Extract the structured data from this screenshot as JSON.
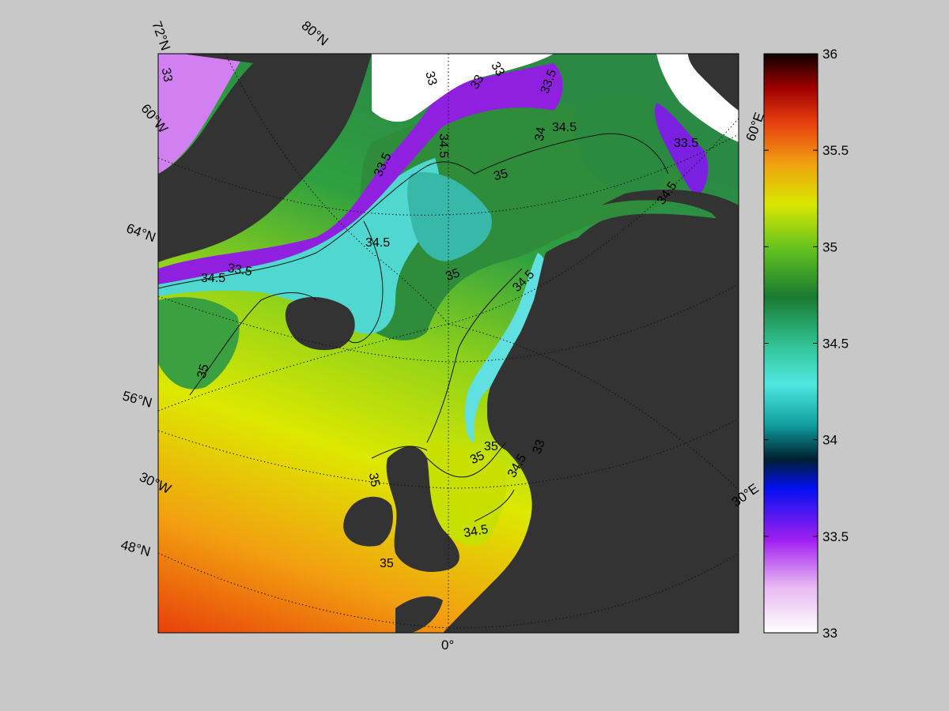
{
  "map": {
    "projection_labels": {
      "lat_72": "72°N",
      "lat_80": "80°N",
      "lat_64": "64°N",
      "lat_56": "56°N",
      "lat_48": "48°N",
      "lon_60w": "60°W",
      "lon_30w": "30°W",
      "lon_0": "0°",
      "lon_30e": "30°E",
      "lon_60e": "60°E"
    },
    "contour_labels": [
      "33",
      "33",
      "33",
      "33",
      "33.5",
      "33.5",
      "33.5",
      "34",
      "34.5",
      "34.5",
      "34.5",
      "34.5",
      "34.5",
      "34.5",
      "34.5",
      "35",
      "35",
      "35",
      "35",
      "35",
      "35",
      "33.5",
      "34.5",
      "35",
      "33"
    ],
    "colors": {
      "land": "#333333",
      "ice": "#ffffff",
      "background": "#c8c8c8"
    }
  },
  "colorbar": {
    "min": 33,
    "max": 36,
    "ticks": [
      "33",
      "33.5",
      "34",
      "34.5",
      "35",
      "35.5",
      "36"
    ]
  }
}
